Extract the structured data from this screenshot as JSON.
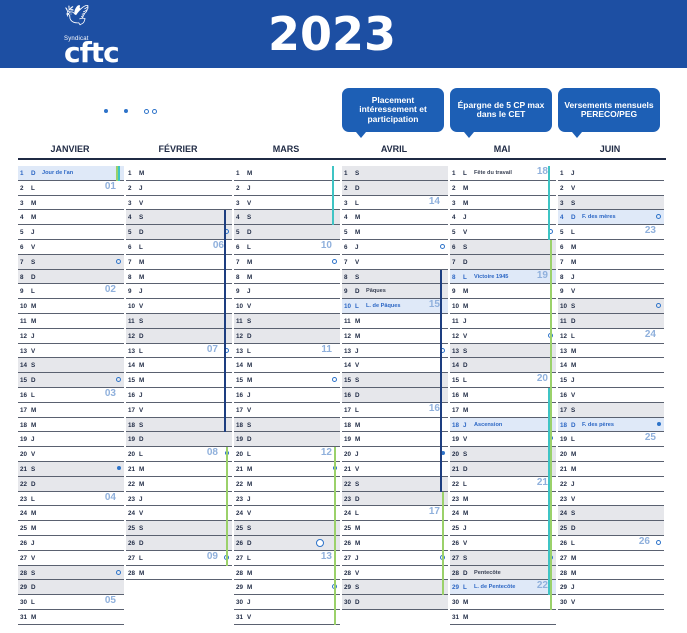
{
  "year": "2023",
  "logo": {
    "small": "Syndicat",
    "word": "cftc"
  },
  "callouts": [
    "Placement intéressement et participation",
    "Épargne de 5 CP max dans le CET",
    "Versements mensuels PERECO/PEG"
  ],
  "colors": {
    "header": "#1d4fa3",
    "callout": "#1d5fb5",
    "weekend": "#e6e7eb",
    "holiday": "#dfe9f8",
    "bar_green": "#9bd16a",
    "bar_teal": "#3fc4c4",
    "bar_navy": "#1d3e80",
    "week_number": "#8fb0dc"
  },
  "months": [
    {
      "name": "JANVIER",
      "days": [
        {
          "n": "1",
          "d": "D",
          "label": "Jour de l'an",
          "hol": true
        },
        {
          "n": "2",
          "d": "L",
          "wk": "01"
        },
        {
          "n": "3",
          "d": "M"
        },
        {
          "n": "4",
          "d": "M"
        },
        {
          "n": "5",
          "d": "J"
        },
        {
          "n": "6",
          "d": "V"
        },
        {
          "n": "7",
          "d": "S",
          "dot": "ring"
        },
        {
          "n": "8",
          "d": "D"
        },
        {
          "n": "9",
          "d": "L",
          "wk": "02"
        },
        {
          "n": "10",
          "d": "M"
        },
        {
          "n": "11",
          "d": "M"
        },
        {
          "n": "12",
          "d": "J"
        },
        {
          "n": "13",
          "d": "V"
        },
        {
          "n": "14",
          "d": "S"
        },
        {
          "n": "15",
          "d": "D",
          "dot": "ring"
        },
        {
          "n": "16",
          "d": "L",
          "wk": "03"
        },
        {
          "n": "17",
          "d": "M"
        },
        {
          "n": "18",
          "d": "M"
        },
        {
          "n": "19",
          "d": "J"
        },
        {
          "n": "20",
          "d": "V"
        },
        {
          "n": "21",
          "d": "S",
          "dot": "full"
        },
        {
          "n": "22",
          "d": "D"
        },
        {
          "n": "23",
          "d": "L",
          "wk": "04"
        },
        {
          "n": "24",
          "d": "M"
        },
        {
          "n": "25",
          "d": "M"
        },
        {
          "n": "26",
          "d": "J"
        },
        {
          "n": "27",
          "d": "V"
        },
        {
          "n": "28",
          "d": "S",
          "dot": "ring"
        },
        {
          "n": "29",
          "d": "D"
        },
        {
          "n": "30",
          "d": "L",
          "wk": "05"
        },
        {
          "n": "31",
          "d": "M"
        }
      ]
    },
    {
      "name": "FÉVRIER",
      "days": [
        {
          "n": "1",
          "d": "M"
        },
        {
          "n": "2",
          "d": "J"
        },
        {
          "n": "3",
          "d": "V"
        },
        {
          "n": "4",
          "d": "S"
        },
        {
          "n": "5",
          "d": "D",
          "dot": "ring"
        },
        {
          "n": "6",
          "d": "L",
          "wk": "06"
        },
        {
          "n": "7",
          "d": "M"
        },
        {
          "n": "8",
          "d": "M"
        },
        {
          "n": "9",
          "d": "J"
        },
        {
          "n": "10",
          "d": "V"
        },
        {
          "n": "11",
          "d": "S"
        },
        {
          "n": "12",
          "d": "D"
        },
        {
          "n": "13",
          "d": "L",
          "wk": "07",
          "dot": "ring"
        },
        {
          "n": "14",
          "d": "M"
        },
        {
          "n": "15",
          "d": "M"
        },
        {
          "n": "16",
          "d": "J"
        },
        {
          "n": "17",
          "d": "V"
        },
        {
          "n": "18",
          "d": "S"
        },
        {
          "n": "19",
          "d": "D"
        },
        {
          "n": "20",
          "d": "L",
          "wk": "08",
          "dot": "full"
        },
        {
          "n": "21",
          "d": "M"
        },
        {
          "n": "22",
          "d": "M"
        },
        {
          "n": "23",
          "d": "J"
        },
        {
          "n": "24",
          "d": "V"
        },
        {
          "n": "25",
          "d": "S"
        },
        {
          "n": "26",
          "d": "D"
        },
        {
          "n": "27",
          "d": "L",
          "wk": "09",
          "dot": "ring"
        },
        {
          "n": "28",
          "d": "M"
        }
      ]
    },
    {
      "name": "MARS",
      "days": [
        {
          "n": "1",
          "d": "M"
        },
        {
          "n": "2",
          "d": "J"
        },
        {
          "n": "3",
          "d": "V"
        },
        {
          "n": "4",
          "d": "S"
        },
        {
          "n": "5",
          "d": "D"
        },
        {
          "n": "6",
          "d": "L",
          "wk": "10"
        },
        {
          "n": "7",
          "d": "M",
          "dot": "ring"
        },
        {
          "n": "8",
          "d": "M"
        },
        {
          "n": "9",
          "d": "J"
        },
        {
          "n": "10",
          "d": "V"
        },
        {
          "n": "11",
          "d": "S"
        },
        {
          "n": "12",
          "d": "D"
        },
        {
          "n": "13",
          "d": "L",
          "wk": "11"
        },
        {
          "n": "14",
          "d": "M"
        },
        {
          "n": "15",
          "d": "M",
          "dot": "ring"
        },
        {
          "n": "16",
          "d": "J"
        },
        {
          "n": "17",
          "d": "V"
        },
        {
          "n": "18",
          "d": "S"
        },
        {
          "n": "19",
          "d": "D"
        },
        {
          "n": "20",
          "d": "L",
          "wk": "12"
        },
        {
          "n": "21",
          "d": "M",
          "dot": "full"
        },
        {
          "n": "22",
          "d": "M"
        },
        {
          "n": "23",
          "d": "J"
        },
        {
          "n": "24",
          "d": "V"
        },
        {
          "n": "25",
          "d": "S"
        },
        {
          "n": "26",
          "d": "D",
          "dot": "hl"
        },
        {
          "n": "27",
          "d": "L",
          "wk": "13"
        },
        {
          "n": "28",
          "d": "M"
        },
        {
          "n": "29",
          "d": "M",
          "dot": "ring"
        },
        {
          "n": "30",
          "d": "J"
        },
        {
          "n": "31",
          "d": "V"
        }
      ]
    },
    {
      "name": "AVRIL",
      "days": [
        {
          "n": "1",
          "d": "S"
        },
        {
          "n": "2",
          "d": "D"
        },
        {
          "n": "3",
          "d": "L",
          "wk": "14"
        },
        {
          "n": "4",
          "d": "M"
        },
        {
          "n": "5",
          "d": "M"
        },
        {
          "n": "6",
          "d": "J",
          "dot": "ring"
        },
        {
          "n": "7",
          "d": "V"
        },
        {
          "n": "8",
          "d": "S"
        },
        {
          "n": "9",
          "d": "D",
          "label": "Pâques",
          "plain": true
        },
        {
          "n": "10",
          "d": "L",
          "wk": "15",
          "label": "L. de Pâques",
          "hol": true
        },
        {
          "n": "11",
          "d": "M"
        },
        {
          "n": "12",
          "d": "M"
        },
        {
          "n": "13",
          "d": "J",
          "dot": "ring"
        },
        {
          "n": "14",
          "d": "V"
        },
        {
          "n": "15",
          "d": "S"
        },
        {
          "n": "16",
          "d": "D"
        },
        {
          "n": "17",
          "d": "L",
          "wk": "16"
        },
        {
          "n": "18",
          "d": "M"
        },
        {
          "n": "19",
          "d": "M"
        },
        {
          "n": "20",
          "d": "J",
          "dot": "full"
        },
        {
          "n": "21",
          "d": "V"
        },
        {
          "n": "22",
          "d": "S"
        },
        {
          "n": "23",
          "d": "D"
        },
        {
          "n": "24",
          "d": "L",
          "wk": "17"
        },
        {
          "n": "25",
          "d": "M"
        },
        {
          "n": "26",
          "d": "M"
        },
        {
          "n": "27",
          "d": "J",
          "dot": "ring"
        },
        {
          "n": "28",
          "d": "V"
        },
        {
          "n": "29",
          "d": "S"
        },
        {
          "n": "30",
          "d": "D"
        }
      ]
    },
    {
      "name": "MAI",
      "days": [
        {
          "n": "1",
          "d": "L",
          "wk": "18",
          "label": "Fête du travail",
          "plain": true
        },
        {
          "n": "2",
          "d": "M"
        },
        {
          "n": "3",
          "d": "M"
        },
        {
          "n": "4",
          "d": "J"
        },
        {
          "n": "5",
          "d": "V",
          "dot": "ring"
        },
        {
          "n": "6",
          "d": "S"
        },
        {
          "n": "7",
          "d": "D"
        },
        {
          "n": "8",
          "d": "L",
          "wk": "19",
          "label": "Victoire 1945",
          "hol": true
        },
        {
          "n": "9",
          "d": "M"
        },
        {
          "n": "10",
          "d": "M"
        },
        {
          "n": "11",
          "d": "J"
        },
        {
          "n": "12",
          "d": "V",
          "dot": "ring"
        },
        {
          "n": "13",
          "d": "S"
        },
        {
          "n": "14",
          "d": "D"
        },
        {
          "n": "15",
          "d": "L",
          "wk": "20"
        },
        {
          "n": "16",
          "d": "M"
        },
        {
          "n": "17",
          "d": "M"
        },
        {
          "n": "18",
          "d": "J",
          "label": "Ascension",
          "hol": true
        },
        {
          "n": "19",
          "d": "V",
          "dot": "full"
        },
        {
          "n": "20",
          "d": "S"
        },
        {
          "n": "21",
          "d": "D"
        },
        {
          "n": "22",
          "d": "L",
          "wk": "21"
        },
        {
          "n": "23",
          "d": "M"
        },
        {
          "n": "24",
          "d": "M"
        },
        {
          "n": "25",
          "d": "J"
        },
        {
          "n": "26",
          "d": "V"
        },
        {
          "n": "27",
          "d": "S",
          "dot": "ring"
        },
        {
          "n": "28",
          "d": "D",
          "label": "Pentecôte",
          "plain": true
        },
        {
          "n": "29",
          "d": "L",
          "wk": "22",
          "label": "L. de Pentecôte",
          "hol": true
        },
        {
          "n": "30",
          "d": "M"
        },
        {
          "n": "31",
          "d": "M"
        }
      ]
    },
    {
      "name": "JUIN",
      "days": [
        {
          "n": "1",
          "d": "J"
        },
        {
          "n": "2",
          "d": "V"
        },
        {
          "n": "3",
          "d": "S"
        },
        {
          "n": "4",
          "d": "D",
          "label": "F. des mères",
          "hol": true,
          "dot": "ring"
        },
        {
          "n": "5",
          "d": "L",
          "wk": "23"
        },
        {
          "n": "6",
          "d": "M"
        },
        {
          "n": "7",
          "d": "M"
        },
        {
          "n": "8",
          "d": "J"
        },
        {
          "n": "9",
          "d": "V"
        },
        {
          "n": "10",
          "d": "S",
          "dot": "ring"
        },
        {
          "n": "11",
          "d": "D"
        },
        {
          "n": "12",
          "d": "L",
          "wk": "24"
        },
        {
          "n": "13",
          "d": "M"
        },
        {
          "n": "14",
          "d": "M"
        },
        {
          "n": "15",
          "d": "J"
        },
        {
          "n": "16",
          "d": "V"
        },
        {
          "n": "17",
          "d": "S"
        },
        {
          "n": "18",
          "d": "D",
          "label": "F. des pères",
          "hol": true,
          "dot": "full"
        },
        {
          "n": "19",
          "d": "L",
          "wk": "25"
        },
        {
          "n": "20",
          "d": "M"
        },
        {
          "n": "21",
          "d": "M"
        },
        {
          "n": "22",
          "d": "J"
        },
        {
          "n": "23",
          "d": "V"
        },
        {
          "n": "24",
          "d": "S"
        },
        {
          "n": "25",
          "d": "D"
        },
        {
          "n": "26",
          "d": "L",
          "wk": "26",
          "dot": "ring"
        },
        {
          "n": "27",
          "d": "M"
        },
        {
          "n": "28",
          "d": "M"
        },
        {
          "n": "29",
          "d": "J"
        },
        {
          "n": "30",
          "d": "V"
        }
      ]
    }
  ]
}
